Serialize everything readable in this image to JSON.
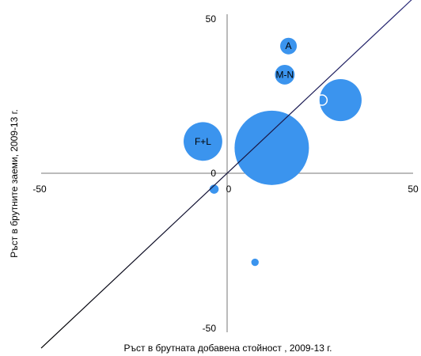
{
  "chart_data": {
    "type": "bubble",
    "title": "",
    "xlabel": "Ръст в брутната добавена стойност , 2009-13 г.",
    "ylabel": "Ръст в брутните заеми, 2009-13 г.",
    "xlim": [
      -50,
      50
    ],
    "ylim": [
      -50,
      50
    ],
    "x_ticks": [
      "-50",
      "0",
      "50"
    ],
    "y_ticks": [
      "50",
      "0",
      "-50"
    ],
    "grid": false,
    "legend": "none",
    "bubble_color": "#3b94ee",
    "reference_line": {
      "x": [
        -50,
        50
      ],
      "y": [
        -55,
        55
      ],
      "color_start": "#000000",
      "color_end": "#2a2a7a"
    },
    "points": [
      {
        "label": "A",
        "x": 16.5,
        "y": 40,
        "size": 5
      },
      {
        "label": "M-N",
        "x": 15.5,
        "y": 31,
        "size": 7
      },
      {
        "label": "",
        "x": 30.5,
        "y": 23,
        "size": 32
      },
      {
        "label": "F+L",
        "x": -6.5,
        "y": 10,
        "size": 27
      },
      {
        "label": "",
        "x": 12,
        "y": 8,
        "size": 100
      },
      {
        "label": "",
        "x": -3.5,
        "y": -5,
        "size": 1.5
      },
      {
        "label": "",
        "x": 7.5,
        "y": -28,
        "size": 1
      }
    ],
    "outlined_marker": {
      "x": 25.5,
      "y": 23
    }
  }
}
